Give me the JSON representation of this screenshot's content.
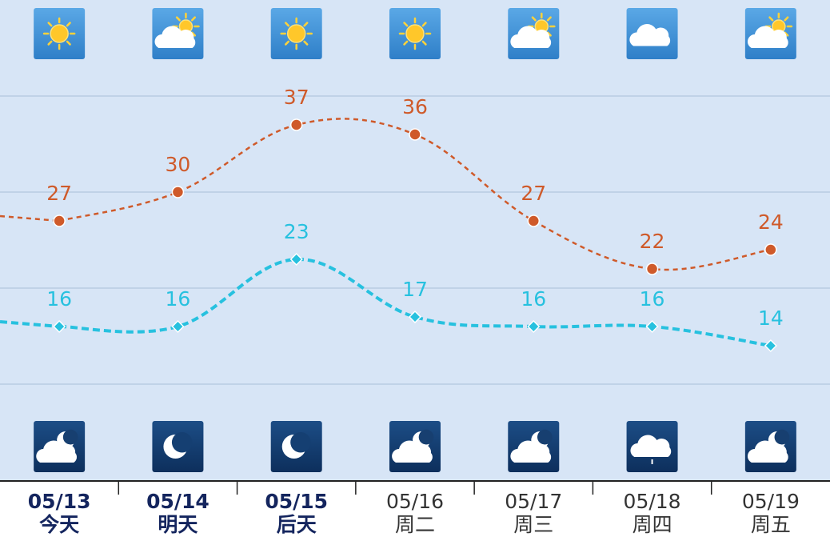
{
  "chart_data": {
    "type": "line",
    "categories": [
      "05/13",
      "05/14",
      "05/15",
      "05/16",
      "05/17",
      "05/18",
      "05/19"
    ],
    "day_labels": [
      "今天",
      "明天",
      "后天",
      "周二",
      "周三",
      "周四",
      "周五"
    ],
    "series": [
      {
        "name": "high",
        "color": "#cf5a2a",
        "values": [
          27,
          30,
          37,
          36,
          27,
          22,
          24
        ]
      },
      {
        "name": "low",
        "color": "#27c1df",
        "values": [
          16,
          16,
          23,
          17,
          16,
          16,
          14
        ]
      }
    ],
    "ylim": [
      0,
      50
    ],
    "yticks": [
      10,
      20,
      30,
      40
    ],
    "grid": true
  }
}
